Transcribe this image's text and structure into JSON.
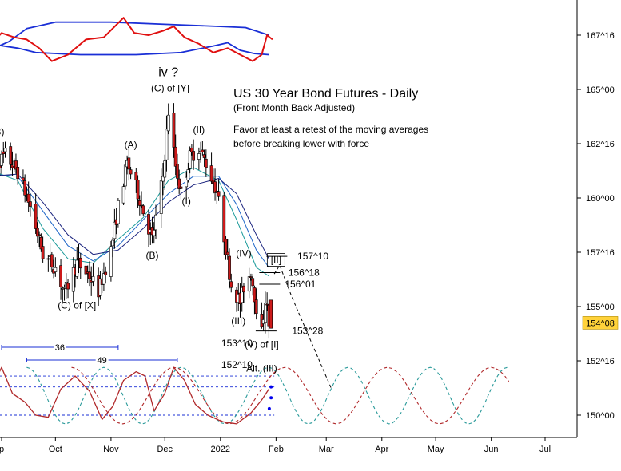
{
  "colors": {
    "candle_up": "#ffffff",
    "candle_down": "#cc1a1a",
    "candle_outline": "#000000",
    "ma_dark_blue": "#1a237e",
    "ma_blue": "#1e66c8",
    "ma_teal": "#1a9a9a",
    "band_blue": "#1a2fd6",
    "oscillator_red": "#e01010",
    "cycle_red": "#b0282a",
    "cycle_teal": "#2a9a9a",
    "cycle_marker": "#0000ee",
    "price_box": "#ffd23a",
    "projection": "#000000",
    "axis": "#000000",
    "bracket": "#1a2fd6"
  },
  "chart_data": {
    "type": "candlestick",
    "title": "US 30 Year Bond Futures - Daily",
    "subtitle": "(Front Month Back Adjusted)",
    "commentary": [
      "Favor at least a retest of the moving averages",
      "before breaking lower with force"
    ],
    "y_axis": {
      "side": "right",
      "ticks": [
        "167^16",
        "165^00",
        "162^16",
        "160^00",
        "157^16",
        "155^00",
        "152^16",
        "150^00"
      ],
      "tick_values": [
        167.5,
        165.0,
        162.5,
        160.0,
        157.5,
        155.0,
        152.5,
        150.0
      ],
      "range": [
        149.2,
        168.8
      ]
    },
    "x_axis": {
      "ticks": [
        "p",
        "Oct",
        "Nov",
        "Dec",
        "2022",
        "Feb",
        "Mar",
        "Apr",
        "May",
        "Jun",
        "Jul"
      ],
      "tick_dates": [
        "2021-09-01",
        "2021-10-01",
        "2021-11-01",
        "2021-12-01",
        "2022-01-01",
        "2022-02-01",
        "2022-03-01",
        "2022-04-01",
        "2022-05-01",
        "2022-06-01",
        "2022-07-01"
      ]
    },
    "current_price": "154^08",
    "key_path": [
      [
        "2021-08-25",
        160.6
      ],
      [
        "2021-08-30",
        161.6
      ],
      [
        "2021-09-03",
        162.0
      ],
      [
        "2021-09-10",
        161.2
      ],
      [
        "2021-09-17",
        159.6
      ],
      [
        "2021-09-24",
        157.4
      ],
      [
        "2021-10-01",
        156.8
      ],
      [
        "2021-10-06",
        155.6
      ],
      [
        "2021-10-13",
        157.0
      ],
      [
        "2021-10-20",
        156.4
      ],
      [
        "2021-10-25",
        155.7
      ],
      [
        "2021-11-01",
        157.6
      ],
      [
        "2021-11-05",
        159.6
      ],
      [
        "2021-11-10",
        161.6
      ],
      [
        "2021-11-15",
        160.5
      ],
      [
        "2021-11-19",
        159.4
      ],
      [
        "2021-11-24",
        158.1
      ],
      [
        "2021-11-30",
        161.0
      ],
      [
        "2021-12-03",
        164.0
      ],
      [
        "2021-12-07",
        161.5
      ],
      [
        "2021-12-10",
        160.2
      ],
      [
        "2021-12-15",
        161.9
      ],
      [
        "2021-12-20",
        162.3
      ],
      [
        "2021-12-24",
        161.6
      ],
      [
        "2021-12-30",
        160.3
      ],
      [
        "2022-01-04",
        157.7
      ],
      [
        "2022-01-07",
        156.0
      ],
      [
        "2022-01-12",
        155.2
      ],
      [
        "2022-01-14",
        155.9
      ],
      [
        "2022-01-18",
        156.6
      ],
      [
        "2022-01-21",
        155.0
      ],
      [
        "2022-01-24",
        153.8
      ],
      [
        "2022-01-26",
        155.4
      ],
      [
        "2022-01-28",
        154.25
      ]
    ],
    "moving_averages": [
      {
        "name": "MA fast",
        "color_key": "ma_teal",
        "points": [
          [
            "2021-08-25",
            161.3
          ],
          [
            "2021-09-10",
            160.8
          ],
          [
            "2021-09-24",
            158.6
          ],
          [
            "2021-10-08",
            157.2
          ],
          [
            "2021-10-22",
            157.0
          ],
          [
            "2021-11-05",
            158.1
          ],
          [
            "2021-11-19",
            159.1
          ],
          [
            "2021-12-03",
            160.8
          ],
          [
            "2021-12-17",
            161.4
          ],
          [
            "2021-12-31",
            160.8
          ],
          [
            "2022-01-10",
            159.0
          ],
          [
            "2022-01-21",
            156.8
          ],
          [
            "2022-01-28",
            156.4
          ]
        ]
      },
      {
        "name": "MA mid",
        "color_key": "ma_blue",
        "points": [
          [
            "2021-08-25",
            161.1
          ],
          [
            "2021-09-10",
            161.0
          ],
          [
            "2021-09-24",
            159.4
          ],
          [
            "2021-10-08",
            157.8
          ],
          [
            "2021-10-22",
            157.1
          ],
          [
            "2021-11-05",
            157.8
          ],
          [
            "2021-11-19",
            159.0
          ],
          [
            "2021-12-03",
            160.2
          ],
          [
            "2021-12-17",
            161.0
          ],
          [
            "2021-12-31",
            161.0
          ],
          [
            "2022-01-10",
            159.7
          ],
          [
            "2022-01-21",
            157.6
          ],
          [
            "2022-01-28",
            156.8
          ]
        ]
      },
      {
        "name": "MA slow",
        "color_key": "ma_dark_blue",
        "points": [
          [
            "2021-08-25",
            161.0
          ],
          [
            "2021-09-10",
            161.1
          ],
          [
            "2021-09-24",
            159.8
          ],
          [
            "2021-10-08",
            158.3
          ],
          [
            "2021-10-22",
            157.4
          ],
          [
            "2021-11-05",
            157.6
          ],
          [
            "2021-11-19",
            158.6
          ],
          [
            "2021-12-03",
            159.8
          ],
          [
            "2021-12-17",
            160.6
          ],
          [
            "2021-12-31",
            160.9
          ],
          [
            "2022-01-10",
            160.2
          ],
          [
            "2022-01-21",
            158.3
          ],
          [
            "2022-01-28",
            157.2
          ]
        ]
      }
    ],
    "projection_path": [
      [
        "2022-01-31",
        156.5
      ],
      [
        "2022-02-03",
        156.9
      ],
      [
        "2022-02-10",
        155.4
      ],
      [
        "2022-03-04",
        151.2
      ]
    ],
    "wave_labels": [
      {
        "text": "(B)",
        "date": "2021-08-30",
        "price": 162.9
      },
      {
        "text": "(C) of [X]",
        "date": "2021-10-13",
        "price": 154.9
      },
      {
        "text": "(A)",
        "date": "2021-11-12",
        "price": 162.3
      },
      {
        "text": "(B)",
        "date": "2021-11-24",
        "price": 157.2
      },
      {
        "text": "iv ?",
        "date": "2021-12-03",
        "price": 165.6
      },
      {
        "text": "(C) of [Y]",
        "date": "2021-12-04",
        "price": 164.9
      },
      {
        "text": "(II)",
        "date": "2021-12-20",
        "price": 163.0
      },
      {
        "text": "(I)",
        "date": "2021-12-13",
        "price": 159.7
      },
      {
        "text": "(IV)",
        "date": "2022-01-14",
        "price": 157.3
      },
      {
        "text": "(III)",
        "date": "2022-01-11",
        "price": 154.2
      },
      {
        "text": "(V) of [I]",
        "date": "2022-01-24",
        "price": 153.1
      },
      {
        "text": "Alt. (III)",
        "date": "2022-01-24",
        "price": 152.0
      },
      {
        "text": "[II]",
        "date": "2022-02-01",
        "price": 157.0
      }
    ],
    "price_levels": [
      {
        "text": "157^10",
        "price": 157.3125
      },
      {
        "text": "156^18",
        "price": 156.5625
      },
      {
        "text": "156^01",
        "price": 156.03
      },
      {
        "text": "153^28",
        "price": 153.875
      },
      {
        "text": "153^10",
        "price": 153.3125
      },
      {
        "text": "152^10",
        "price": 152.3125
      }
    ],
    "upper_indicator": {
      "band_upper": [
        [
          "2021-08-25",
          166.8
        ],
        [
          "2021-09-05",
          167.2
        ],
        [
          "2021-09-15",
          167.8
        ],
        [
          "2021-10-01",
          168.1
        ],
        [
          "2021-11-01",
          168.1
        ],
        [
          "2021-12-01",
          168.0
        ],
        [
          "2022-01-01",
          167.9
        ],
        [
          "2022-01-15",
          167.85
        ],
        [
          "2022-01-28",
          167.5
        ]
      ],
      "band_lower": [
        [
          "2021-08-25",
          167.1
        ],
        [
          "2021-09-10",
          166.9
        ],
        [
          "2021-09-20",
          166.7
        ],
        [
          "2021-10-15",
          166.6
        ],
        [
          "2021-11-15",
          166.6
        ],
        [
          "2021-12-10",
          166.7
        ],
        [
          "2021-12-28",
          167.0
        ],
        [
          "2022-01-05",
          167.15
        ],
        [
          "2022-01-12",
          166.8
        ],
        [
          "2022-01-20",
          166.65
        ],
        [
          "2022-01-28",
          166.6
        ]
      ],
      "oscillator": [
        [
          "2021-08-25",
          167.0
        ],
        [
          "2021-09-01",
          167.6
        ],
        [
          "2021-09-08",
          167.4
        ],
        [
          "2021-09-15",
          167.3
        ],
        [
          "2021-09-22",
          166.9
        ],
        [
          "2021-09-29",
          166.3
        ],
        [
          "2021-10-08",
          166.6
        ],
        [
          "2021-10-18",
          167.3
        ],
        [
          "2021-10-28",
          167.4
        ],
        [
          "2021-11-08",
          168.3
        ],
        [
          "2021-11-14",
          167.6
        ],
        [
          "2021-11-22",
          167.5
        ],
        [
          "2021-11-30",
          167.7
        ],
        [
          "2021-12-06",
          167.9
        ],
        [
          "2021-12-12",
          167.4
        ],
        [
          "2021-12-20",
          167.1
        ],
        [
          "2021-12-28",
          166.7
        ],
        [
          "2022-01-05",
          166.9
        ],
        [
          "2022-01-12",
          166.6
        ],
        [
          "2022-01-19",
          166.3
        ],
        [
          "2022-01-24",
          166.6
        ],
        [
          "2022-01-27",
          167.5
        ],
        [
          "2022-01-30",
          167.3
        ]
      ]
    },
    "cycle_indicator": {
      "brackets": [
        {
          "label": "36",
          "start": "2021-09-01",
          "end": "2021-11-05"
        },
        {
          "label": "49",
          "start": "2021-09-15",
          "end": "2021-12-08"
        }
      ],
      "oscillator": [
        [
          "2021-08-25",
          151.0
        ],
        [
          "2021-09-01",
          152.2
        ],
        [
          "2021-09-07",
          151.0
        ],
        [
          "2021-09-14",
          150.6
        ],
        [
          "2021-09-20",
          150.0
        ],
        [
          "2021-09-27",
          149.9
        ],
        [
          "2021-10-04",
          151.2
        ],
        [
          "2021-10-12",
          151.8
        ],
        [
          "2021-10-20",
          151.1
        ],
        [
          "2021-10-27",
          149.8
        ],
        [
          "2021-11-02",
          150.4
        ],
        [
          "2021-11-08",
          151.6
        ],
        [
          "2021-11-15",
          152.0
        ],
        [
          "2021-11-20",
          151.8
        ],
        [
          "2021-11-25",
          150.2
        ],
        [
          "2021-12-01",
          151.0
        ],
        [
          "2021-12-06",
          152.2
        ],
        [
          "2021-12-12",
          151.6
        ],
        [
          "2021-12-18",
          150.5
        ],
        [
          "2021-12-25",
          150.0
        ],
        [
          "2022-01-02",
          149.7
        ],
        [
          "2022-01-10",
          149.6
        ],
        [
          "2022-01-18",
          150.1
        ],
        [
          "2022-01-24",
          150.7
        ],
        [
          "2022-01-28",
          151.2
        ]
      ],
      "reference_levels": [
        151.8,
        151.3,
        150.0
      ],
      "projection_markers": [
        [
          "2022-01-31",
          151.3
        ],
        [
          "2022-01-31",
          150.8
        ],
        [
          "2022-01-30",
          150.3
        ]
      ],
      "teal_cycle_peaks": [
        "2021-09-15",
        "2021-10-28",
        "2021-12-10",
        "2022-01-28",
        "2022-03-13",
        "2022-04-28",
        "2022-06-10"
      ],
      "red_cycle_peaks": [
        "2021-10-10",
        "2021-12-06",
        "2022-02-06",
        "2022-04-04",
        "2022-06-01",
        "2022-07-30"
      ]
    }
  }
}
